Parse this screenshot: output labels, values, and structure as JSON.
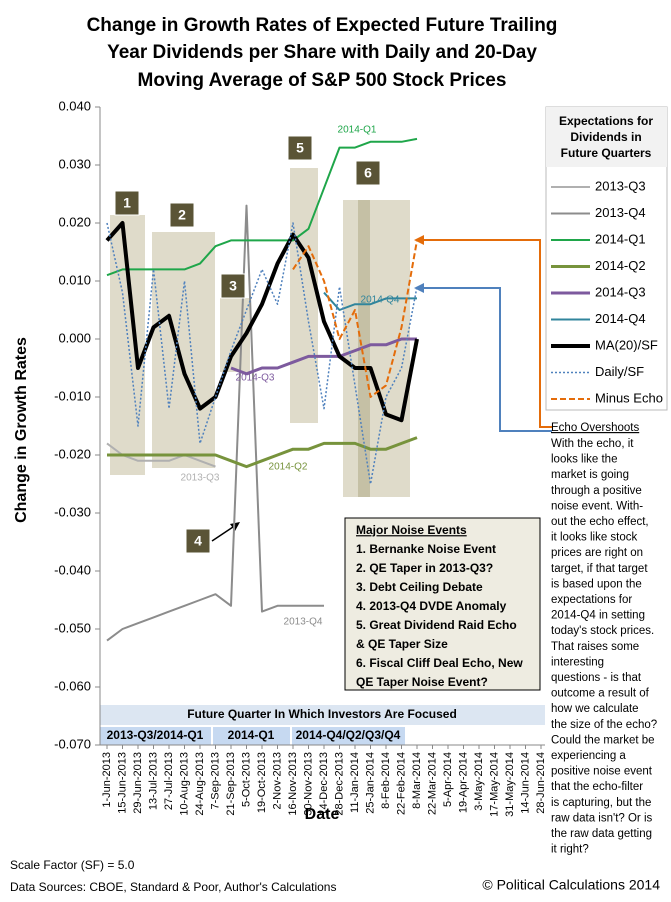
{
  "chart_data": {
    "type": "line",
    "title_lines": [
      "Change in Growth Rates of Expected Future Trailing",
      "Year Dividends per Share with Daily and 20-Day",
      "Moving Average of S&P 500 Stock Prices"
    ],
    "x_label": "Date",
    "y_label": "Change in Growth Rates",
    "x": [
      "1-Jun-2013",
      "15-Jun-2013",
      "29-Jun-2013",
      "13-Jul-2013",
      "27-Jul-2013",
      "10-Aug-2013",
      "24-Aug-2013",
      "7-Sep-2013",
      "21-Sep-2013",
      "5-Oct-2013",
      "19-Oct-2013",
      "2-Nov-2013",
      "16-Nov-2013",
      "30-Nov-2013",
      "14-Dec-2013",
      "28-Dec-2013",
      "11-Jan-2014",
      "25-Jan-2014",
      "8-Feb-2014",
      "22-Feb-2014",
      "8-Mar-2014",
      "22-Mar-2014",
      "5-Apr-2014",
      "19-Apr-2014",
      "3-May-2014",
      "17-May-2014",
      "31-May-2014",
      "14-Jun-2014",
      "28-Jun-2014"
    ],
    "ylim": [
      -0.07,
      0.04
    ],
    "yticks": [
      {
        "value": -0.07,
        "label": "-0.070"
      },
      {
        "value": -0.06,
        "label": "-0.060"
      },
      {
        "value": -0.05,
        "label": "-0.050"
      },
      {
        "value": -0.04,
        "label": "-0.040"
      },
      {
        "value": -0.03,
        "label": "-0.030"
      },
      {
        "value": -0.02,
        "label": "-0.020"
      },
      {
        "value": -0.01,
        "label": "-0.010"
      },
      {
        "value": 0,
        "label": "0.000"
      },
      {
        "value": 0.01,
        "label": "0.010"
      },
      {
        "value": 0.02,
        "label": "0.020"
      },
      {
        "value": 0.03,
        "label": "0.030"
      },
      {
        "value": 0.04,
        "label": "0.040"
      }
    ],
    "grid": false,
    "legend_position": "right",
    "legend_title_lines": [
      "Expectations for",
      "Dividends in",
      "Future Quarters"
    ],
    "series": [
      {
        "name": "2013-Q3",
        "color": "#b0b0b0",
        "style": "solid",
        "width": 2,
        "values": [
          -0.018,
          -0.02,
          -0.021,
          -0.021,
          -0.021,
          -0.02,
          -0.021,
          -0.022,
          null,
          null,
          null,
          null,
          null,
          null,
          null,
          null,
          null,
          null,
          null,
          null,
          null,
          null,
          null,
          null,
          null,
          null,
          null,
          null,
          null
        ]
      },
      {
        "name": "2013-Q4",
        "color": "#8c8c8c",
        "style": "solid",
        "width": 2,
        "values": [
          -0.052,
          -0.05,
          -0.049,
          -0.048,
          -0.047,
          -0.046,
          -0.045,
          -0.044,
          -0.046,
          0.023,
          -0.047,
          -0.046,
          -0.046,
          -0.046,
          -0.046,
          null,
          null,
          null,
          null,
          null,
          null,
          null,
          null,
          null,
          null,
          null,
          null,
          null,
          null
        ]
      },
      {
        "name": "2014-Q1",
        "color": "#1fa64a",
        "style": "solid",
        "width": 2,
        "values": [
          0.011,
          0.012,
          0.012,
          0.012,
          0.012,
          0.012,
          0.013,
          0.016,
          0.017,
          0.017,
          0.017,
          0.017,
          0.017,
          0.019,
          0.026,
          0.033,
          0.033,
          0.034,
          0.034,
          0.034,
          0.0345,
          null,
          null,
          null,
          null,
          null,
          null,
          null,
          null
        ]
      },
      {
        "name": "2014-Q2",
        "color": "#77933c",
        "style": "solid",
        "width": 3,
        "values": [
          -0.02,
          -0.02,
          -0.02,
          -0.02,
          -0.02,
          -0.02,
          -0.02,
          -0.02,
          -0.021,
          -0.022,
          -0.021,
          -0.02,
          -0.019,
          -0.019,
          -0.018,
          -0.018,
          -0.018,
          -0.019,
          -0.019,
          -0.018,
          -0.017,
          null,
          null,
          null,
          null,
          null,
          null,
          null,
          null
        ]
      },
      {
        "name": "2014-Q3",
        "color": "#7d5a9e",
        "style": "solid",
        "width": 3,
        "values": [
          null,
          null,
          null,
          null,
          null,
          null,
          null,
          null,
          -0.005,
          -0.006,
          -0.005,
          -0.005,
          -0.004,
          -0.003,
          -0.003,
          -0.003,
          -0.002,
          -0.001,
          -0.001,
          0,
          0,
          null,
          null,
          null,
          null,
          null,
          null,
          null,
          null
        ]
      },
      {
        "name": "2014-Q4",
        "color": "#31859c",
        "style": "solid",
        "width": 2,
        "values": [
          null,
          null,
          null,
          null,
          null,
          null,
          null,
          null,
          null,
          null,
          null,
          null,
          null,
          null,
          0.008,
          0.005,
          0.006,
          0.006,
          0.007,
          0.007,
          0.007,
          null,
          null,
          null,
          null,
          null,
          null,
          null,
          null
        ]
      },
      {
        "name": "MA(20)/SF",
        "color": "#000000",
        "style": "solid",
        "width": 4,
        "values": [
          0.017,
          0.02,
          -0.005,
          0.002,
          0.004,
          -0.006,
          -0.012,
          -0.01,
          -0.003,
          0.001,
          0.006,
          0.013,
          0.018,
          0.014,
          0.003,
          -0.003,
          -0.005,
          -0.005,
          -0.013,
          -0.014,
          0,
          null,
          null,
          null,
          null,
          null,
          null,
          null,
          null
        ]
      },
      {
        "name": "Daily/SF",
        "color": "#4f81bd",
        "style": "dotted",
        "width": 1.5,
        "values": [
          0.02,
          0.008,
          -0.015,
          0.012,
          -0.012,
          0.01,
          -0.018,
          -0.01,
          -0.002,
          0.005,
          0.012,
          0.006,
          0.02,
          0.003,
          -0.012,
          0.009,
          -0.008,
          -0.025,
          -0.01,
          -0.005,
          0.009,
          null,
          null,
          null,
          null,
          null,
          null,
          null,
          null
        ]
      },
      {
        "name": "Minus Echo",
        "color": "#e46c0a",
        "style": "dashed",
        "width": 2,
        "values": [
          null,
          null,
          null,
          null,
          null,
          null,
          null,
          null,
          null,
          null,
          null,
          null,
          0.012,
          0.016,
          0.01,
          0,
          0.005,
          -0.01,
          -0.008,
          0.002,
          0.017,
          null,
          null,
          null,
          null,
          null,
          null,
          null,
          null
        ]
      }
    ],
    "region_labels": [
      "1",
      "2",
      "3",
      "4",
      "5",
      "6"
    ],
    "noise_events": {
      "title": "Major Noise Events",
      "lines": [
        "1. Bernanke Noise Event",
        "2. QE Taper in 2013-Q3?",
        "3. Debt Ceiling Debate",
        "4. 2013-Q4  DVDE Anomaly",
        "5. Great Dividend Raid Echo",
        "& QE Taper Size",
        "6. Fiscal Cliff Deal Echo, New",
        "QE Taper Noise Event?"
      ]
    },
    "echo_note": {
      "title": "Echo Overshoots",
      "lines": [
        "With the echo, it",
        "looks like the",
        "market is going",
        "through a positive",
        "noise event. With-",
        "out the echo effect,",
        "it looks like stock",
        "prices are right on",
        "target, if that target",
        "is based upon the",
        "expectations for",
        "2014-Q4 in setting",
        "today's stock prices.",
        "That raises some",
        "interesting",
        "questions - is that",
        "outcome a result of",
        "how we calculate",
        "the size of the echo?",
        "Could the market be",
        "experiencing a",
        "positive noise event",
        "that the echo-filter",
        "is capturing, but the",
        "raw data isn't? Or is",
        "the raw data getting",
        "it right?"
      ]
    },
    "focus_band": {
      "title": "Future Quarter In Which Investors Are Focused",
      "segments": [
        "2013-Q3/2014-Q1",
        "2014-Q1",
        "2014-Q4/Q2/Q3/Q4"
      ]
    },
    "footnotes": [
      "Scale Factor (SF) = 5.0",
      "Data Sources: CBOE, Standard & Poor, Author's Calculations"
    ],
    "copyright": "© Political Calculations 2014"
  }
}
